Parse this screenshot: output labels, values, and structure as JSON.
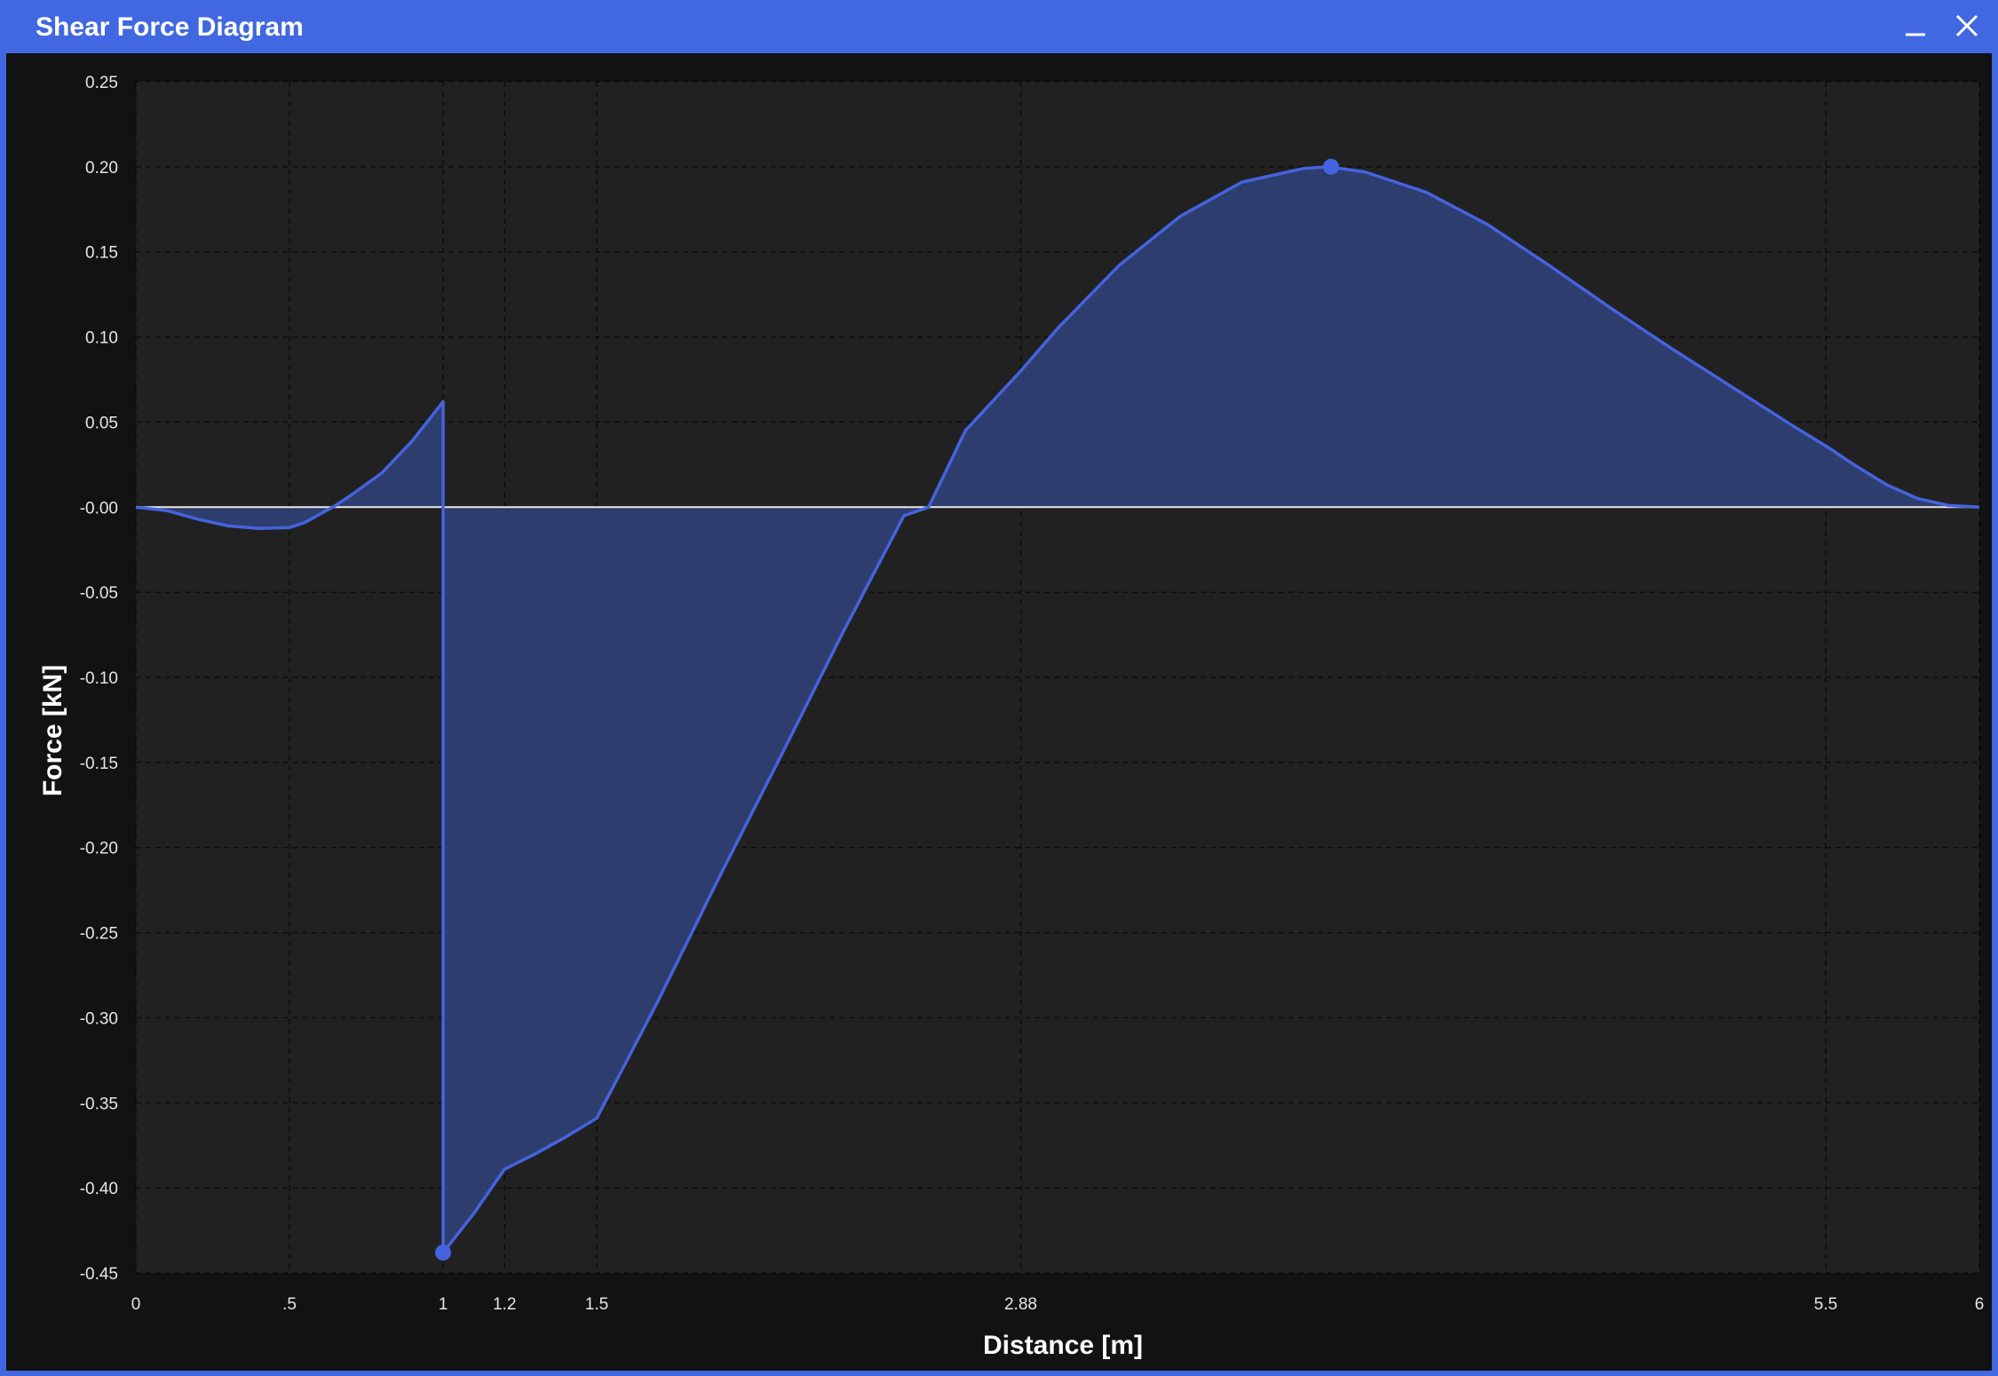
{
  "window": {
    "title": "Shear Force Diagram",
    "minimize_icon": "minimize-icon",
    "close_icon": "close-icon"
  },
  "colors": {
    "title_bar": "#4168e1",
    "background": "#121212",
    "plot_area": "#212121",
    "series_line": "#4563de",
    "series_fill": "#2e3f72",
    "zero_line": "#e8e8e8",
    "grid": "#3a3a3a"
  },
  "chart_data": {
    "type": "area",
    "xlabel": "Distance [m]",
    "ylabel": "Force [kN]",
    "xlim": [
      0,
      6
    ],
    "ylim": [
      -0.45,
      0.25
    ],
    "grid": true,
    "x_ticks": [
      0,
      0.5,
      1,
      1.2,
      1.5,
      2.88,
      5.5,
      6
    ],
    "x_tick_labels": [
      "0",
      ".5",
      "1",
      "1.2",
      "1.5",
      "2.88",
      "5.5",
      "6"
    ],
    "y_ticks": [
      0.25,
      0.2,
      0.15,
      0.1,
      0.05,
      0,
      -0.05,
      -0.1,
      -0.15,
      -0.2,
      -0.25,
      -0.3,
      -0.35,
      -0.4,
      -0.45
    ],
    "y_tick_labels": [
      "0.25",
      "0.20",
      "0.15",
      "0.10",
      "0.05",
      "-0.00",
      "-0.05",
      "-0.10",
      "-0.15",
      "-0.20",
      "-0.25",
      "-0.30",
      "-0.35",
      "-0.40",
      "-0.45"
    ],
    "series": [
      {
        "points": [
          [
            0,
            0
          ],
          [
            0.1,
            -0.002
          ],
          [
            0.2,
            -0.007
          ],
          [
            0.3,
            -0.011
          ],
          [
            0.4,
            -0.0125
          ],
          [
            0.5,
            -0.012
          ],
          [
            0.55,
            -0.009
          ],
          [
            0.6,
            -0.004
          ],
          [
            0.65,
            0.001
          ],
          [
            0.7,
            0.007
          ],
          [
            0.8,
            0.02
          ],
          [
            0.9,
            0.039
          ],
          [
            1,
            0.062
          ],
          [
            1,
            -0.438
          ],
          [
            1.1,
            -0.415
          ],
          [
            1.2,
            -0.389
          ],
          [
            1.3,
            -0.38
          ],
          [
            1.4,
            -0.37
          ],
          [
            1.5,
            -0.359
          ],
          [
            1.7,
            -0.29
          ],
          [
            1.9,
            -0.217
          ],
          [
            2.1,
            -0.146
          ],
          [
            2.3,
            -0.074
          ],
          [
            2.5,
            -0.005
          ],
          [
            2.58,
            0
          ],
          [
            2.7,
            0.045
          ],
          [
            2.88,
            0.08
          ],
          [
            3.0,
            0.105
          ],
          [
            3.2,
            0.142
          ],
          [
            3.4,
            0.171
          ],
          [
            3.6,
            0.191
          ],
          [
            3.8,
            0.199
          ],
          [
            3.88,
            0.2
          ],
          [
            4.0,
            0.197
          ],
          [
            4.2,
            0.185
          ],
          [
            4.4,
            0.166
          ],
          [
            4.6,
            0.142
          ],
          [
            4.8,
            0.117
          ],
          [
            5.0,
            0.093
          ],
          [
            5.2,
            0.07
          ],
          [
            5.4,
            0.047
          ],
          [
            5.5,
            0.036
          ],
          [
            5.6,
            0.024
          ],
          [
            5.7,
            0.013
          ],
          [
            5.8,
            0.005
          ],
          [
            5.9,
            0.001
          ],
          [
            6,
            0
          ]
        ],
        "markers": [
          [
            1,
            -0.438
          ],
          [
            3.89,
            0.2
          ]
        ]
      }
    ]
  }
}
